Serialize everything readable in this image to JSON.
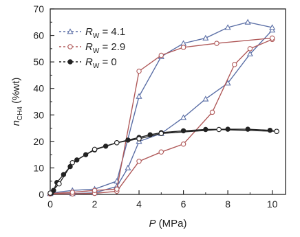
{
  "chart_data": {
    "type": "line",
    "xlim": [
      0,
      10.6
    ],
    "ylim": [
      0,
      70
    ],
    "x_ticks": [
      0,
      2,
      4,
      6,
      8,
      10
    ],
    "y_ticks": [
      0,
      10,
      20,
      30,
      40,
      50,
      60,
      70
    ],
    "xlabel": {
      "symbol": "P",
      "unit": " (MPa)"
    },
    "ylabel": {
      "symbol": "n",
      "sub": "CH4",
      "unit": " (%wt)"
    },
    "legend_position": "top-left",
    "series": [
      {
        "label_symbol": "R",
        "label_sub": "W",
        "label_value": " = 4.1",
        "color": "#5b6fa6",
        "marker": "triangle",
        "adsorption": [
          [
            0,
            0.3
          ],
          [
            1,
            0.3
          ],
          [
            2,
            0.6
          ],
          [
            3,
            3
          ],
          [
            3.5,
            10
          ],
          [
            4,
            20
          ],
          [
            5,
            23
          ],
          [
            6,
            29
          ],
          [
            7,
            36
          ],
          [
            8,
            42
          ],
          [
            9,
            53
          ],
          [
            10,
            62
          ]
        ],
        "desorption": [
          [
            10,
            63
          ],
          [
            8.9,
            65
          ],
          [
            8,
            63
          ],
          [
            7,
            59
          ],
          [
            6,
            57
          ],
          [
            5,
            52
          ],
          [
            4,
            37
          ],
          [
            3,
            5
          ],
          [
            2,
            2
          ],
          [
            1,
            1.5
          ],
          [
            0,
            0.5
          ]
        ]
      },
      {
        "label_symbol": "R",
        "label_sub": "W",
        "label_value": " = 2.9",
        "color": "#b05a5a",
        "marker": "circle",
        "adsorption": [
          [
            0,
            0.2
          ],
          [
            1,
            0.2
          ],
          [
            2,
            0.4
          ],
          [
            3,
            1.2
          ],
          [
            4,
            12.5
          ],
          [
            5,
            16
          ],
          [
            6,
            19
          ],
          [
            7.3,
            31
          ],
          [
            8.3,
            49
          ],
          [
            9,
            55
          ],
          [
            10,
            58.5
          ]
        ],
        "desorption": [
          [
            10,
            59
          ],
          [
            7.5,
            57
          ],
          [
            6,
            55.5
          ],
          [
            5,
            52.5
          ],
          [
            4,
            46.5
          ],
          [
            3,
            2
          ],
          [
            2,
            1.5
          ],
          [
            1,
            0.8
          ],
          [
            0,
            0.3
          ]
        ]
      },
      {
        "label_symbol": "R",
        "label_sub": "W",
        "label_value": " = 0",
        "color": "#222222",
        "marker": "filled-circle",
        "adsorption": [
          [
            0.05,
            0.5
          ],
          [
            0.15,
            1.5
          ],
          [
            0.3,
            4.5
          ],
          [
            0.6,
            7.5
          ],
          [
            0.9,
            10.5
          ],
          [
            1.2,
            13
          ],
          [
            1.6,
            15
          ],
          [
            2,
            16.8
          ],
          [
            2.5,
            18.2
          ],
          [
            3,
            19.5
          ],
          [
            3.5,
            20.5
          ],
          [
            4,
            21.5
          ],
          [
            4.5,
            22.5
          ],
          [
            5,
            23.3
          ],
          [
            6,
            24
          ],
          [
            7,
            24.5
          ],
          [
            8,
            24.6
          ],
          [
            8.9,
            24.6
          ],
          [
            9.9,
            24.2
          ],
          [
            10.2,
            23.8
          ]
        ],
        "desorption": [
          [
            10.2,
            23.8
          ],
          [
            7.6,
            24.5
          ],
          [
            5,
            23
          ],
          [
            4,
            21
          ],
          [
            3,
            19.5
          ],
          [
            2,
            17
          ],
          [
            1,
            12
          ],
          [
            0.4,
            4
          ],
          [
            0,
            0.5
          ]
        ]
      }
    ]
  }
}
